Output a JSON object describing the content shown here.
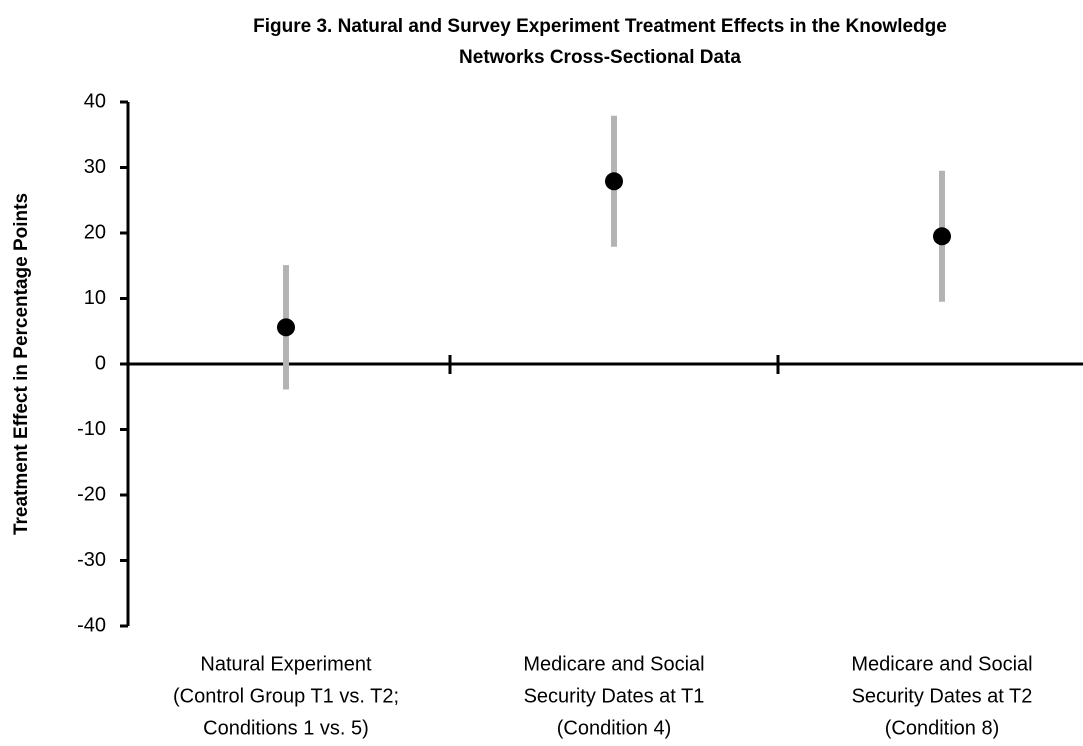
{
  "chart_data": {
    "type": "errorbar",
    "title": [
      "Figure 3. Natural and Survey Experiment Treatment Effects in the Knowledge",
      "Networks Cross-Sectional Data"
    ],
    "y_label": "Treatment Effect in Percentage Points",
    "categories": [
      [
        "Natural Experiment",
        "(Control Group T1 vs. T2;",
        "Conditions 1 vs. 5)"
      ],
      [
        "Medicare and Social",
        "Security Dates at T1",
        "(Condition 4)"
      ],
      [
        "Medicare and Social",
        "Security Dates at T2",
        "(Condition 8)"
      ]
    ],
    "values": [
      5.6,
      27.9,
      19.5
    ],
    "errors": [
      9.5,
      10,
      10
    ],
    "color": "#000000",
    "error_color": "#b3b3b3",
    "ylim": [
      -40,
      40
    ],
    "yticks": [
      -40,
      -30,
      -20,
      -10,
      0,
      10,
      20,
      30,
      40
    ]
  }
}
